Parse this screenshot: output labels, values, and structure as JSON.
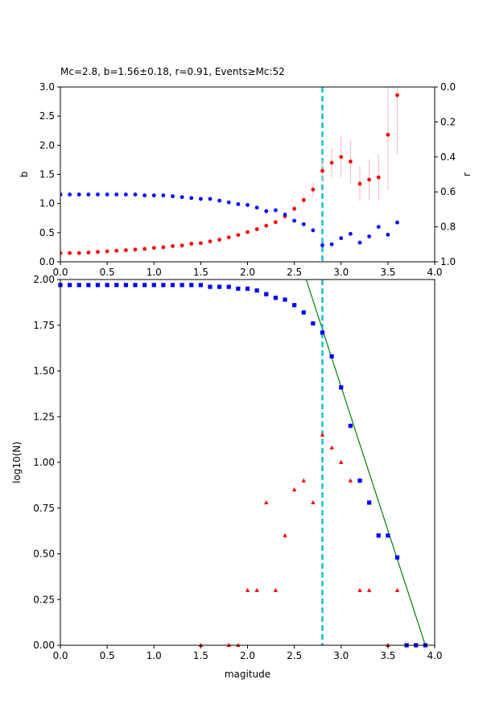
{
  "figure_title": "Mc=2.8, b=1.56±0.18, r=0.91, Events≥Mc:52",
  "colors": {
    "b_series": "#ff0000",
    "r_series": "#0000ff",
    "error_bars": "#f4b6b6",
    "mc_line": "#17becf",
    "cumulative": "#0000ff",
    "noncumulative": "#ff0000",
    "fit_line": "#008000",
    "axes": "#000000"
  },
  "chart_data": [
    {
      "type": "scatter",
      "title": "",
      "xlabel": "",
      "ylabel": "b",
      "ylabel_right": "r",
      "xlim": [
        0,
        4
      ],
      "ylim": [
        0,
        3
      ],
      "ylim_right": [
        1,
        0
      ],
      "right_axis_inverted": true,
      "xticks": [
        "0.0",
        "0.5",
        "1.0",
        "1.5",
        "2.0",
        "2.5",
        "3.0",
        "3.5",
        "4.0"
      ],
      "yticks": [
        "0.0",
        "0.5",
        "1.0",
        "1.5",
        "2.0",
        "2.5",
        "3.0"
      ],
      "yticks_right": [
        "0.0",
        "0.2",
        "0.4",
        "0.6",
        "0.8",
        "1.0"
      ],
      "grid": false,
      "vertical_line": {
        "x": 2.8,
        "style": "dashed"
      },
      "series": [
        {
          "axis": "left",
          "marker": "circle",
          "x": [
            0.0,
            0.1,
            0.2,
            0.3,
            0.4,
            0.5,
            0.6,
            0.7,
            0.8,
            0.9,
            1.0,
            1.1,
            1.2,
            1.3,
            1.4,
            1.5,
            1.6,
            1.7,
            1.8,
            1.9,
            2.0,
            2.1,
            2.2,
            2.3,
            2.4,
            2.5,
            2.6,
            2.7,
            2.8,
            2.9,
            3.0,
            3.1,
            3.2,
            3.3,
            3.4,
            3.5,
            3.6
          ],
          "y": [
            0.15,
            0.15,
            0.15,
            0.16,
            0.17,
            0.18,
            0.19,
            0.2,
            0.21,
            0.22,
            0.24,
            0.25,
            0.27,
            0.28,
            0.31,
            0.32,
            0.35,
            0.38,
            0.42,
            0.46,
            0.51,
            0.56,
            0.62,
            0.68,
            0.78,
            0.91,
            1.06,
            1.24,
            1.56,
            1.7,
            1.8,
            1.72,
            1.34,
            1.41,
            1.45,
            2.18,
            2.86
          ],
          "yerr": [
            0,
            0,
            0,
            0,
            0,
            0,
            0,
            0,
            0,
            0,
            0,
            0,
            0,
            0,
            0,
            0,
            0,
            0,
            0,
            0,
            0,
            0,
            0,
            0,
            0.03,
            0.05,
            0.08,
            0.12,
            0.18,
            0.25,
            0.35,
            0.38,
            0.3,
            0.35,
            0.4,
            0.95,
            1.0
          ]
        },
        {
          "axis": "right",
          "marker": "circle",
          "x": [
            0.0,
            0.1,
            0.2,
            0.3,
            0.4,
            0.5,
            0.6,
            0.7,
            0.8,
            0.9,
            1.0,
            1.1,
            1.2,
            1.3,
            1.4,
            1.5,
            1.6,
            1.7,
            1.8,
            1.9,
            2.0,
            2.1,
            2.2,
            2.3,
            2.4,
            2.5,
            2.6,
            2.7,
            2.8,
            2.9,
            3.0,
            3.1,
            3.2,
            3.3,
            3.4,
            3.5,
            3.6
          ],
          "y": [
            0.615,
            0.615,
            0.615,
            0.615,
            0.615,
            0.615,
            0.615,
            0.615,
            0.615,
            0.62,
            0.62,
            0.62,
            0.625,
            0.63,
            0.635,
            0.64,
            0.64,
            0.65,
            0.66,
            0.67,
            0.675,
            0.69,
            0.71,
            0.705,
            0.73,
            0.765,
            0.785,
            0.82,
            0.905,
            0.9,
            0.865,
            0.84,
            0.89,
            0.855,
            0.8,
            0.845,
            0.775
          ]
        }
      ]
    },
    {
      "type": "scatter",
      "title": "",
      "xlabel": "magitude",
      "ylabel": "log10(N)",
      "xlim": [
        0,
        4
      ],
      "ylim": [
        0,
        2
      ],
      "xticks": [
        "0.0",
        "0.5",
        "1.0",
        "1.5",
        "2.0",
        "2.5",
        "3.0",
        "3.5",
        "4.0"
      ],
      "yticks": [
        "0.00",
        "0.25",
        "0.50",
        "0.75",
        "1.00",
        "1.25",
        "1.50",
        "1.75",
        "2.00"
      ],
      "grid": false,
      "vertical_line": {
        "x": 2.8,
        "style": "dashed"
      },
      "fit_line": {
        "x": [
          2.627,
          3.9
        ],
        "y": [
          2.0,
          0.0
        ]
      },
      "series": [
        {
          "marker": "square",
          "x": [
            0.0,
            0.1,
            0.2,
            0.3,
            0.4,
            0.5,
            0.6,
            0.7,
            0.8,
            0.9,
            1.0,
            1.1,
            1.2,
            1.3,
            1.4,
            1.5,
            1.6,
            1.7,
            1.8,
            1.9,
            2.0,
            2.1,
            2.2,
            2.3,
            2.4,
            2.5,
            2.6,
            2.7,
            2.8,
            2.9,
            3.0,
            3.1,
            3.2,
            3.3,
            3.4,
            3.5,
            3.6,
            3.7,
            3.8,
            3.9
          ],
          "y": [
            1.97,
            1.97,
            1.97,
            1.97,
            1.97,
            1.97,
            1.97,
            1.97,
            1.97,
            1.97,
            1.97,
            1.97,
            1.97,
            1.97,
            1.97,
            1.97,
            1.96,
            1.96,
            1.96,
            1.95,
            1.95,
            1.94,
            1.92,
            1.9,
            1.89,
            1.86,
            1.82,
            1.76,
            1.71,
            1.58,
            1.41,
            1.2,
            0.9,
            0.78,
            0.6,
            0.6,
            0.48,
            0.0,
            0.0,
            0.0
          ]
        },
        {
          "marker": "triangle",
          "x": [
            1.5,
            1.8,
            1.9,
            2.0,
            2.1,
            2.2,
            2.3,
            2.4,
            2.5,
            2.6,
            2.7,
            2.8,
            2.9,
            3.0,
            3.1,
            3.2,
            3.3,
            3.5,
            3.6
          ],
          "y": [
            0.0,
            0.0,
            0.0,
            0.3,
            0.3,
            0.78,
            0.3,
            0.6,
            0.85,
            0.9,
            0.78,
            1.15,
            1.08,
            1.0,
            0.9,
            0.3,
            0.3,
            0.0,
            0.3
          ]
        }
      ]
    }
  ]
}
